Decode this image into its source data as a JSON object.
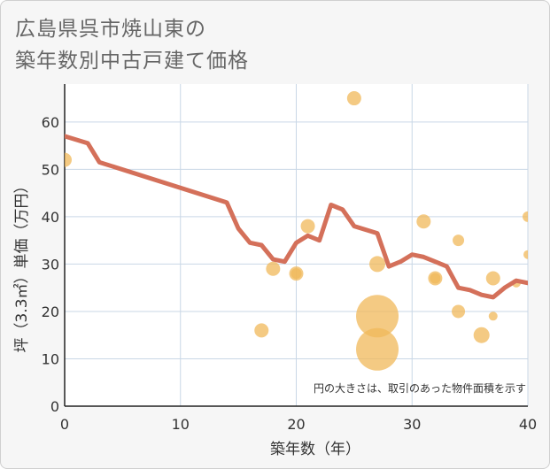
{
  "chart_data": {
    "type": "scatter",
    "title_lines": [
      "広島県呉市焼山東の",
      "築年数別中古戸建て価格"
    ],
    "xlabel": "築年数（年）",
    "ylabel": "坪（3.3㎡）単価（万円）",
    "xlim": [
      0,
      40
    ],
    "ylim": [
      0,
      68
    ],
    "xticks": [
      "0",
      "10",
      "20",
      "30",
      "40"
    ],
    "xtick_values": [
      0,
      10,
      20,
      30,
      40
    ],
    "yticks": [
      "0",
      "10",
      "20",
      "30",
      "40",
      "50",
      "60"
    ],
    "ytick_values": [
      0,
      10,
      20,
      30,
      40,
      50,
      60
    ],
    "note": "円の大きさは、取引のあった物件面積を示す",
    "colors": {
      "line": "#d4705a",
      "bubble": "#f0b85a",
      "grid": "#c9d7e6"
    },
    "trend_line": {
      "x": [
        0,
        2,
        3,
        14,
        15,
        16,
        17,
        18,
        19,
        20,
        21,
        22,
        23,
        24,
        25,
        27,
        28,
        29,
        30,
        31,
        32,
        33,
        34,
        35,
        36,
        37,
        38,
        39,
        40
      ],
      "y": [
        57,
        55.5,
        51.5,
        43,
        37.5,
        34.5,
        34,
        31,
        30.5,
        34.5,
        36,
        35,
        42.5,
        41.5,
        38,
        36.5,
        29.5,
        30.5,
        32,
        31.5,
        30.5,
        29.5,
        25,
        24.5,
        23.5,
        23,
        25,
        26.5,
        26
      ]
    },
    "bubbles": [
      {
        "x": 0,
        "y": 52,
        "size": 8
      },
      {
        "x": 17,
        "y": 16,
        "size": 8
      },
      {
        "x": 18,
        "y": 29,
        "size": 8
      },
      {
        "x": 20,
        "y": 28,
        "size": 8
      },
      {
        "x": 20,
        "y": 28,
        "size": 6
      },
      {
        "x": 21,
        "y": 38,
        "size": 8
      },
      {
        "x": 25,
        "y": 65,
        "size": 8
      },
      {
        "x": 27,
        "y": 30,
        "size": 9
      },
      {
        "x": 27,
        "y": 19,
        "size": 24
      },
      {
        "x": 27,
        "y": 12,
        "size": 24
      },
      {
        "x": 31,
        "y": 39,
        "size": 8
      },
      {
        "x": 32,
        "y": 27,
        "size": 8
      },
      {
        "x": 32,
        "y": 27,
        "size": 6
      },
      {
        "x": 34,
        "y": 35,
        "size": 6.5
      },
      {
        "x": 34,
        "y": 20,
        "size": 7.5
      },
      {
        "x": 36,
        "y": 15,
        "size": 9
      },
      {
        "x": 37,
        "y": 27,
        "size": 8
      },
      {
        "x": 37,
        "y": 19,
        "size": 5
      },
      {
        "x": 39,
        "y": 26,
        "size": 5
      },
      {
        "x": 40,
        "y": 40,
        "size": 6
      },
      {
        "x": 40,
        "y": 32,
        "size": 5
      }
    ]
  }
}
